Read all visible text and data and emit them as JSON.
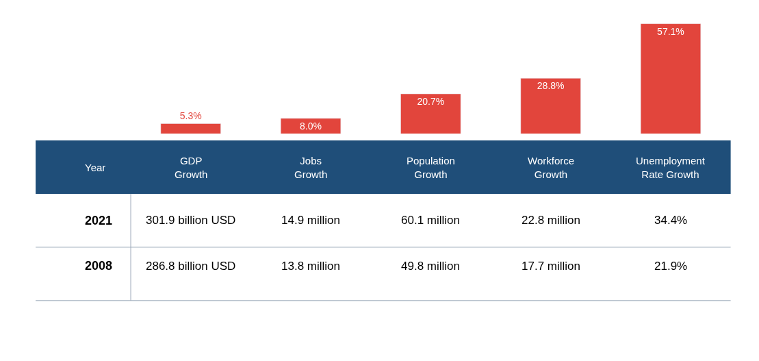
{
  "chart_data": {
    "type": "bar",
    "categories": [
      "GDP Growth",
      "Jobs Growth",
      "Population Growth",
      "Workforce Growth",
      "Unemployment Rate Growth"
    ],
    "values": [
      5.3,
      8.0,
      20.7,
      28.8,
      57.1
    ],
    "value_labels": [
      "5.3%",
      "8.0%",
      "20.7%",
      "28.8%",
      "57.1%"
    ],
    "color": "#e2453c",
    "annotations": [
      "Year",
      "2021",
      "301.9 billion USD",
      "14.9 million",
      "60.1 million",
      "22.8 million",
      "34.4%",
      "2008",
      "286.8 billion USD",
      "13.8 million",
      "49.8 million",
      "17.7 million",
      "21.9%"
    ]
  }
}
